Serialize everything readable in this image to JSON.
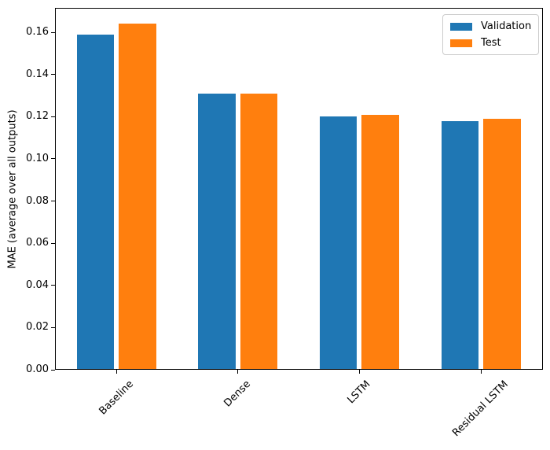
{
  "figure": {
    "background": "#ffffff",
    "axis_color": "#000000"
  },
  "chart_data": {
    "type": "bar",
    "categories": [
      "Baseline",
      "Dense",
      "LSTM",
      "Residual LSTM"
    ],
    "series": [
      {
        "name": "Validation",
        "color": "#1f77b4",
        "values": [
          0.159,
          0.131,
          0.12,
          0.118
        ]
      },
      {
        "name": "Test",
        "color": "#ff7f0e",
        "values": [
          0.164,
          0.131,
          0.121,
          0.119
        ]
      }
    ],
    "title": "",
    "xlabel": "",
    "ylabel": "MAE (average over all outputs)",
    "ylim": [
      0,
      0.1716
    ],
    "ytick_values": [
      0.0,
      0.02,
      0.04,
      0.06,
      0.08,
      0.1,
      0.12,
      0.14,
      0.16
    ],
    "ytick_labels": [
      "0.00",
      "0.02",
      "0.04",
      "0.06",
      "0.08",
      "0.10",
      "0.12",
      "0.14",
      "0.16"
    ],
    "grid": false,
    "legend": {
      "position": "upper right",
      "entries": [
        "Validation",
        "Test"
      ],
      "frame_color": "#cccccc"
    },
    "xtick_label_rotation_deg": 45
  }
}
